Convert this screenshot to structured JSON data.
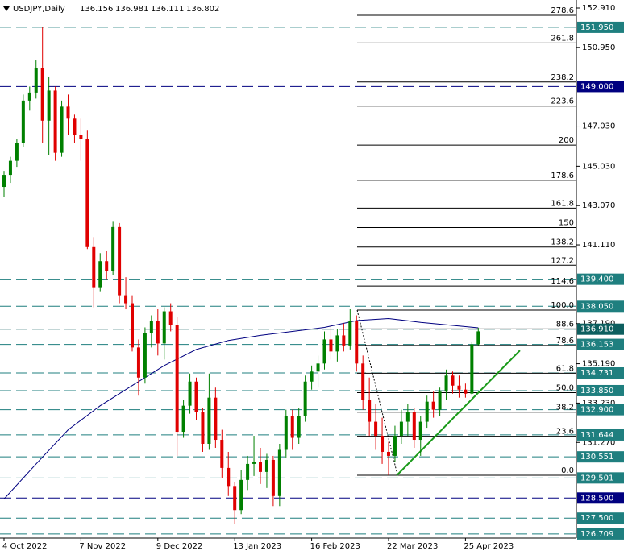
{
  "chart_data": {
    "type": "candlestick",
    "title": "USDJPY,Daily",
    "up_color": "#008000",
    "down_color": "#e00000",
    "ylim": [
      126.505,
      153.311
    ],
    "categories": [
      "4 Oct 2022",
      null,
      null,
      null,
      null,
      null,
      null,
      null,
      null,
      null,
      null,
      null,
      "7 Nov 2022",
      null,
      null,
      null,
      null,
      null,
      null,
      null,
      null,
      null,
      null,
      null,
      "9 Dec 2022",
      null,
      null,
      null,
      null,
      null,
      null,
      null,
      null,
      null,
      null,
      null,
      "13 Jan 2023",
      null,
      null,
      null,
      null,
      null,
      null,
      null,
      null,
      null,
      null,
      null,
      "16 Feb 2023",
      null,
      null,
      null,
      null,
      null,
      null,
      null,
      null,
      null,
      null,
      null,
      "22 Mar 2023",
      null,
      null,
      null,
      null,
      null,
      null,
      null,
      null,
      null,
      null,
      null,
      "25 Apr 2023",
      null,
      null
    ],
    "candles": [
      [
        144.0,
        144.8,
        143.5,
        144.6
      ],
      [
        144.6,
        145.5,
        144.2,
        145.3
      ],
      [
        145.3,
        146.4,
        145.0,
        146.2
      ],
      [
        146.2,
        148.6,
        146.0,
        148.3
      ],
      [
        148.3,
        149.0,
        147.8,
        148.7
      ],
      [
        148.7,
        150.3,
        148.4,
        149.9
      ],
      [
        149.9,
        151.95,
        146.2,
        147.3
      ],
      [
        147.3,
        149.5,
        145.6,
        148.8
      ],
      [
        148.8,
        149.0,
        145.3,
        145.7
      ],
      [
        145.7,
        148.3,
        145.5,
        148.0
      ],
      [
        148.0,
        148.6,
        146.6,
        147.4
      ],
      [
        147.4,
        147.6,
        146.2,
        146.6
      ],
      [
        146.6,
        147.4,
        145.3,
        146.4
      ],
      [
        146.4,
        146.8,
        140.9,
        141.0
      ],
      [
        141.0,
        141.5,
        138.0,
        139.0
      ],
      [
        139.0,
        140.7,
        138.8,
        140.3
      ],
      [
        140.3,
        140.8,
        139.4,
        139.8
      ],
      [
        139.8,
        142.3,
        139.6,
        142.0
      ],
      [
        142.0,
        142.2,
        138.2,
        138.6
      ],
      [
        138.6,
        139.5,
        137.9,
        138.2
      ],
      [
        138.2,
        138.6,
        135.8,
        136.0
      ],
      [
        136.0,
        136.4,
        133.6,
        134.5
      ],
      [
        134.5,
        137.0,
        134.2,
        136.7
      ],
      [
        136.7,
        137.6,
        136.0,
        137.3
      ],
      [
        137.3,
        137.9,
        135.6,
        136.2
      ],
      [
        136.2,
        138.0,
        135.4,
        137.8
      ],
      [
        137.8,
        138.2,
        136.8,
        137.1
      ],
      [
        137.1,
        137.5,
        130.6,
        131.8
      ],
      [
        131.8,
        133.4,
        131.5,
        133.1
      ],
      [
        133.1,
        134.7,
        132.7,
        134.3
      ],
      [
        134.3,
        134.5,
        132.4,
        132.8
      ],
      [
        132.8,
        133.0,
        130.8,
        131.2
      ],
      [
        131.2,
        134.7,
        130.9,
        133.5
      ],
      [
        133.5,
        134.0,
        131.0,
        131.4
      ],
      [
        131.4,
        131.9,
        129.5,
        130.0
      ],
      [
        130.0,
        130.8,
        128.6,
        129.1
      ],
      [
        129.1,
        129.3,
        127.2,
        127.9
      ],
      [
        127.9,
        129.9,
        127.7,
        129.4
      ],
      [
        129.4,
        130.6,
        128.9,
        130.2
      ],
      [
        130.2,
        131.6,
        129.6,
        130.3
      ],
      [
        130.3,
        131.0,
        129.2,
        129.8
      ],
      [
        129.8,
        130.7,
        129.0,
        130.4
      ],
      [
        130.4,
        130.6,
        128.1,
        128.6
      ],
      [
        128.6,
        131.2,
        128.1,
        130.9
      ],
      [
        130.9,
        132.9,
        130.5,
        132.6
      ],
      [
        132.6,
        132.9,
        130.9,
        131.5
      ],
      [
        131.5,
        133.0,
        131.2,
        132.6
      ],
      [
        132.6,
        134.6,
        132.3,
        134.3
      ],
      [
        134.3,
        135.1,
        133.9,
        134.8
      ],
      [
        134.8,
        135.6,
        134.0,
        135.2
      ],
      [
        135.2,
        136.8,
        134.9,
        136.4
      ],
      [
        136.4,
        137.1,
        135.4,
        135.8
      ],
      [
        135.8,
        136.9,
        135.3,
        136.6
      ],
      [
        136.6,
        137.2,
        135.8,
        136.1
      ],
      [
        136.1,
        137.9,
        135.9,
        137.3
      ],
      [
        137.3,
        137.6,
        134.8,
        135.2
      ],
      [
        135.2,
        135.6,
        132.9,
        133.4
      ],
      [
        133.4,
        134.5,
        131.6,
        132.3
      ],
      [
        132.3,
        133.2,
        130.9,
        131.6
      ],
      [
        131.6,
        132.5,
        130.2,
        130.8
      ],
      [
        130.8,
        131.3,
        129.64,
        130.6
      ],
      [
        130.6,
        132.1,
        130.3,
        131.6
      ],
      [
        131.6,
        132.9,
        131.2,
        132.3
      ],
      [
        132.3,
        133.2,
        131.6,
        132.8
      ],
      [
        132.8,
        133.0,
        131.0,
        131.4
      ],
      [
        131.4,
        132.6,
        130.6,
        132.3
      ],
      [
        132.3,
        133.6,
        132.0,
        133.3
      ],
      [
        133.3,
        133.8,
        132.5,
        132.9
      ],
      [
        132.9,
        134.0,
        132.6,
        133.8
      ],
      [
        133.8,
        134.9,
        133.4,
        134.6
      ],
      [
        134.6,
        134.8,
        133.7,
        134.1
      ],
      [
        134.1,
        134.6,
        133.5,
        133.9
      ],
      [
        133.9,
        134.2,
        133.5,
        133.7
      ],
      [
        133.7,
        136.3,
        133.6,
        136.156
      ],
      [
        136.156,
        136.981,
        136.111,
        136.802
      ]
    ],
    "moving_average": {
      "color": "#000080",
      "x": [
        0,
        5,
        10,
        15,
        20,
        25,
        30,
        35,
        40,
        45,
        50,
        55,
        60,
        65,
        70,
        74
      ],
      "values": [
        128.45,
        130.2,
        131.9,
        133.1,
        134.1,
        135.1,
        135.9,
        136.35,
        136.6,
        136.8,
        137.0,
        137.34,
        137.44,
        137.25,
        137.1,
        136.98
      ]
    },
    "trendline": {
      "color": "#1a9a1a",
      "x": [
        61.3,
        80.5
      ],
      "values": [
        129.635,
        135.85
      ]
    },
    "fib": {
      "color": "#000000",
      "low": 129.635,
      "high": 137.86,
      "x": [
        55.1,
        61.4
      ],
      "levels": [
        {
          "value": 0,
          "label": "0.0"
        },
        23.6,
        38.2,
        {
          "value": 50,
          "label": "50.0"
        },
        61.8,
        78.6,
        88.6,
        {
          "value": 100,
          "label": "100.0"
        },
        114.6,
        127.2,
        138.2,
        150,
        161.8,
        178.6,
        200,
        223.6,
        238.2,
        261.8,
        278.6
      ]
    },
    "yticks": [
      {
        "value": 152.91,
        "label": "152.910"
      },
      {
        "value": 150.95,
        "label": "150.950"
      },
      {
        "value": 147.03,
        "label": "147.030"
      },
      {
        "value": 145.03,
        "label": "145.030"
      },
      {
        "value": 143.07,
        "label": "143.070"
      },
      {
        "value": 141.11,
        "label": "141.110"
      },
      {
        "value": 137.19,
        "label": "137.190"
      },
      {
        "value": 135.19,
        "label": "135.190"
      },
      {
        "value": 133.23,
        "label": "133.230"
      },
      {
        "value": 131.27,
        "label": "131.270"
      }
    ],
    "levels": [
      {
        "value": 151.95,
        "label": "151.950",
        "color": "#1f7f7f"
      },
      {
        "value": 149.0,
        "label": "149.000",
        "color": "#000080"
      },
      {
        "value": 139.4,
        "label": "139.400",
        "color": "#1f7f7f"
      },
      {
        "value": 138.05,
        "label": "138.050",
        "color": "#1f7f7f"
      },
      {
        "value": 136.91,
        "label": "136.910",
        "color": "#0d5f5f"
      },
      {
        "value": 136.153,
        "label": "136.153",
        "color": "#1f7f7f"
      },
      {
        "value": 134.731,
        "label": "134.731",
        "color": "#1f7f7f"
      },
      {
        "value": 133.85,
        "label": "133.850",
        "color": "#1f7f7f"
      },
      {
        "value": 132.9,
        "label": "132.900",
        "color": "#1f7f7f"
      },
      {
        "value": 131.644,
        "label": "131.644",
        "color": "#1f7f7f"
      },
      {
        "value": 130.551,
        "label": "130.551",
        "color": "#1f7f7f"
      },
      {
        "value": 129.501,
        "label": "129.501",
        "color": "#1f7f7f"
      },
      {
        "value": 128.5,
        "label": "128.500",
        "color": "#000080"
      },
      {
        "value": 127.5,
        "label": "127.500",
        "color": "#1f7f7f"
      },
      {
        "value": 126.709,
        "label": "126.709",
        "color": "#1f7f7f"
      }
    ]
  }
}
